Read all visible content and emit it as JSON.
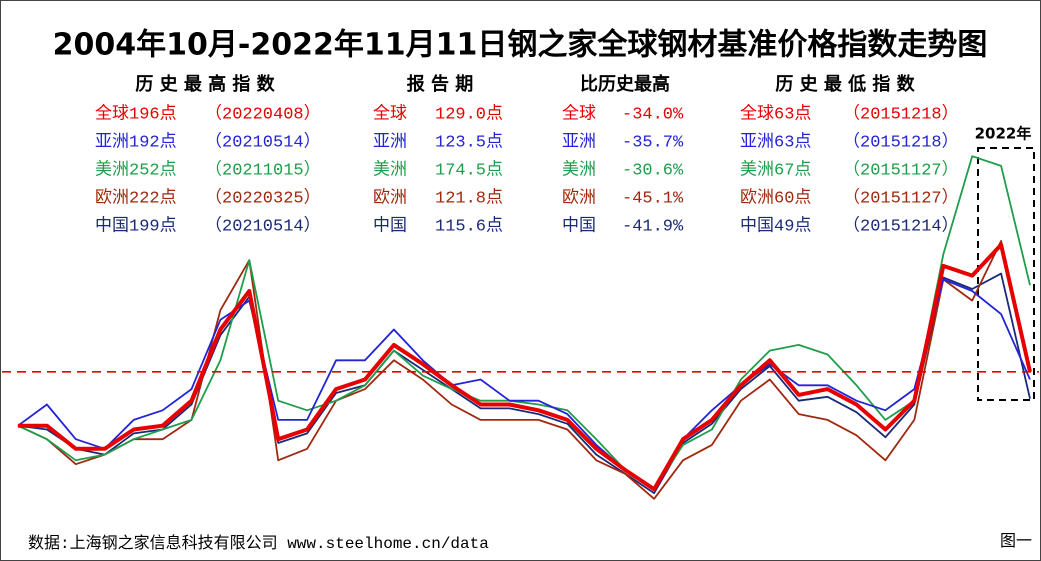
{
  "chart_data": {
    "type": "line",
    "title": "2004年10月-2022年11月11日钢之家全球钢材基准价格指数走势图",
    "ylim": [
      52,
      291
    ],
    "reference_line": 129,
    "annotation": "2022年",
    "series": [
      {
        "color": "#e60000",
        "values": [
          101,
          101,
          89,
          89,
          99,
          101,
          114,
          151,
          171,
          94,
          99,
          120,
          125,
          143,
          133,
          122,
          112,
          112,
          109,
          104,
          89,
          78,
          68,
          94,
          104,
          122,
          135,
          117,
          120,
          112,
          99,
          114,
          184,
          179,
          195,
          129
        ]
      },
      {
        "color": "#2323d8",
        "values": [
          101,
          112,
          94,
          89,
          104,
          109,
          120,
          156,
          166,
          104,
          104,
          135,
          135,
          151,
          135,
          122,
          125,
          114,
          114,
          107,
          91,
          78,
          68,
          94,
          109,
          122,
          133,
          122,
          122,
          114,
          109,
          120,
          177,
          171,
          159,
          125
        ]
      },
      {
        "color": "#1e9e4a",
        "values": [
          101,
          94,
          83,
          86,
          94,
          99,
          104,
          135,
          187,
          114,
          109,
          114,
          122,
          140,
          127,
          120,
          114,
          114,
          112,
          109,
          94,
          78,
          68,
          91,
          99,
          125,
          140,
          143,
          138,
          122,
          104,
          114,
          190,
          241,
          236,
          174
        ]
      },
      {
        "color": "#a0280f",
        "values": [
          101,
          94,
          81,
          86,
          94,
          94,
          104,
          161,
          187,
          83,
          89,
          114,
          120,
          135,
          125,
          112,
          104,
          104,
          104,
          99,
          83,
          76,
          63,
          83,
          91,
          114,
          125,
          107,
          104,
          96,
          83,
          104,
          177,
          166,
          197,
          130
        ]
      },
      {
        "color": "#1a2a78",
        "values": [
          101,
          99,
          89,
          86,
          97,
          99,
          112,
          148,
          168,
          92,
          97,
          118,
          122,
          140,
          130,
          120,
          110,
          110,
          107,
          102,
          86,
          76,
          66,
          92,
          102,
          120,
          132,
          114,
          116,
          108,
          95,
          112,
          178,
          172,
          180,
          115
        ]
      }
    ]
  },
  "table": {
    "headers": [
      "历 史 最 高 指 数",
      "报 告 期",
      "比历史最高",
      "历 史 最 低 指 数"
    ],
    "rows": [
      [
        [
          "全球196点",
          "（20220408）"
        ],
        [
          "全球",
          "129.0点"
        ],
        [
          "全球",
          "-34.0%"
        ],
        [
          "全球63点",
          "（20151218）"
        ]
      ],
      [
        [
          "亚洲192点",
          "（20210514）"
        ],
        [
          "亚洲",
          "123.5点"
        ],
        [
          "亚洲",
          "-35.7%"
        ],
        [
          "亚洲63点",
          "（20151218）"
        ]
      ],
      [
        [
          "美洲252点",
          "（20211015）"
        ],
        [
          "美洲",
          "174.5点"
        ],
        [
          "美洲",
          "-30.6%"
        ],
        [
          "美洲67点",
          "（20151127）"
        ]
      ],
      [
        [
          "欧洲222点",
          "（20220325）"
        ],
        [
          "欧洲",
          "121.8点"
        ],
        [
          "欧洲",
          "-45.1%"
        ],
        [
          "欧洲60点",
          "（20151127）"
        ]
      ],
      [
        [
          "中国199点",
          "（20210514）"
        ],
        [
          "中国",
          "115.6点"
        ],
        [
          "中国",
          "-41.9%"
        ],
        [
          "中国49点",
          "（20151214）"
        ]
      ]
    ]
  },
  "footer": {
    "source": "数据:上海钢之家信息科技有限公司 www.steelhome.cn/data",
    "figure": "图一"
  }
}
